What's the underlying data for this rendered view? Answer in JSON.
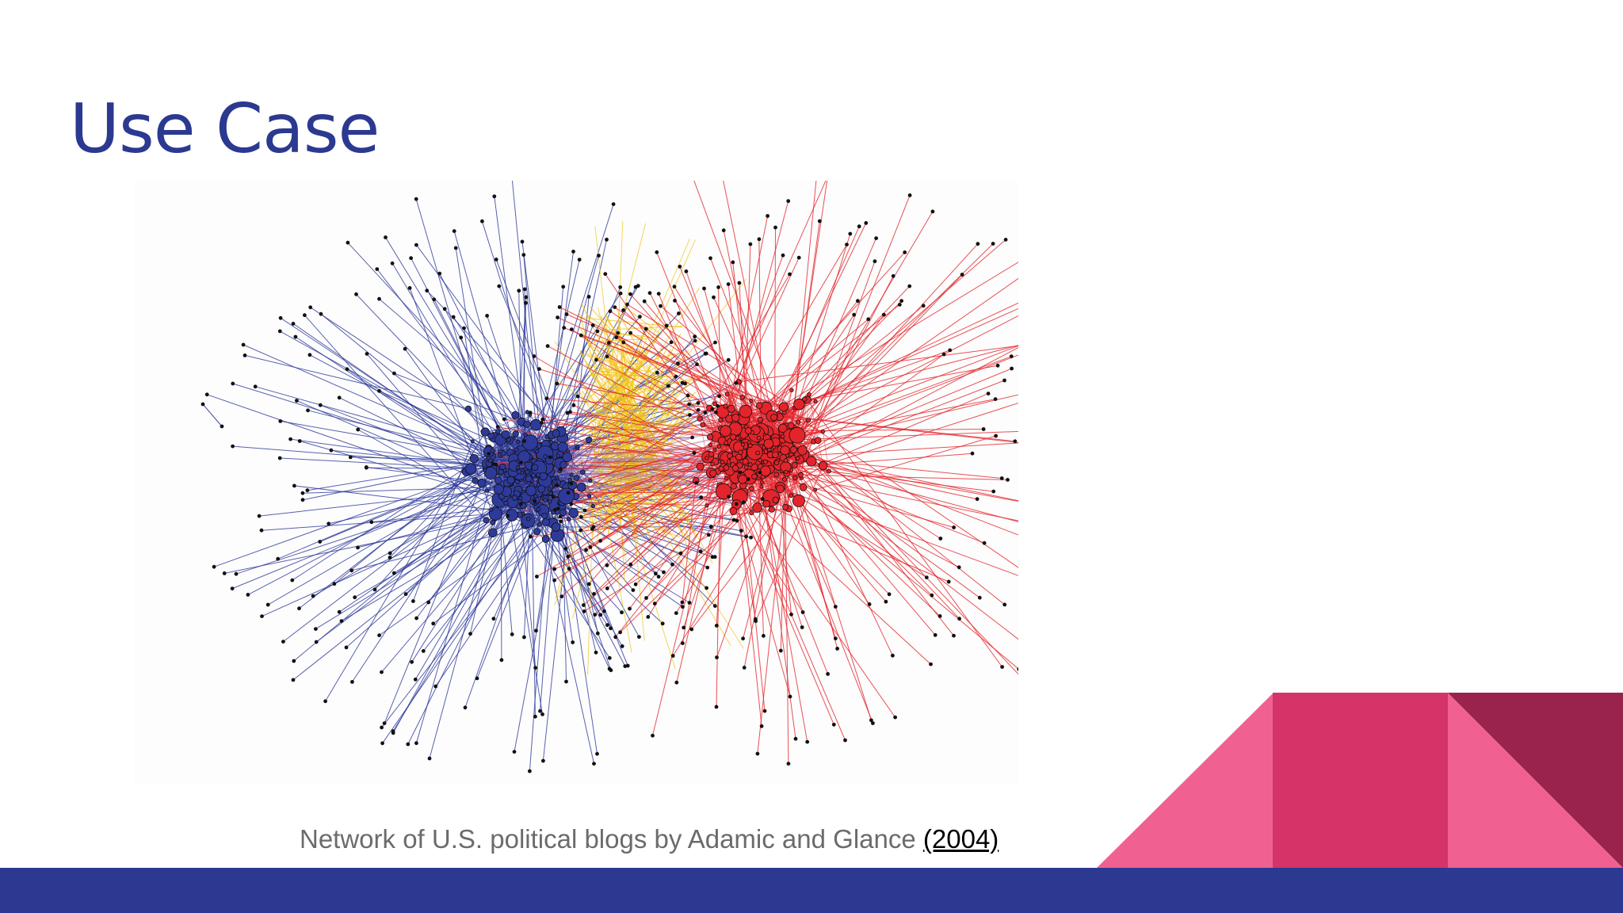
{
  "slide": {
    "title": "Use Case",
    "caption_text": "Network of U.S. political blogs by Adamic and Glance ",
    "caption_link": "(2004)"
  },
  "figure": {
    "subject": "political blog network",
    "clusters": [
      {
        "side": "left",
        "color": "#2e3a9a"
      },
      {
        "side": "right",
        "color": "#e3242b"
      }
    ],
    "bridge_color": "#f2c318",
    "node_color": "#111111"
  },
  "colors": {
    "title": "#2b3990",
    "caption": "#6b6b6b",
    "bar": "#2b3990",
    "pink_light": "#f06192",
    "pink_mid": "#d53468",
    "pink_dark": "#99234c"
  }
}
